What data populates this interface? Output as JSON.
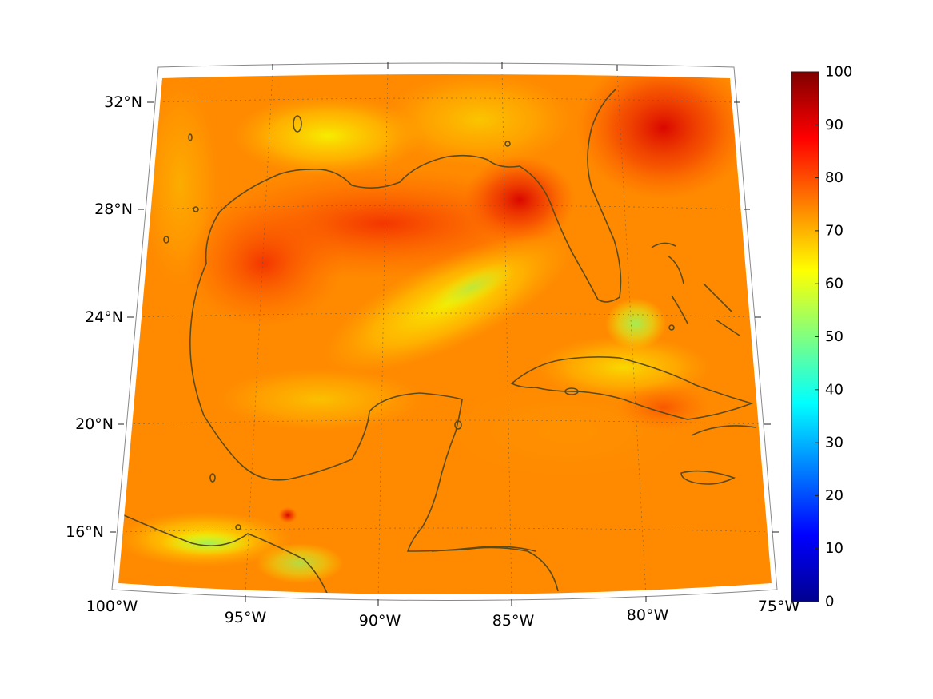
{
  "map": {
    "lon_labels": [
      "100°W",
      "95°W",
      "90°W",
      "85°W",
      "80°W",
      "75°W"
    ],
    "lat_labels": [
      "32°N",
      "28°N",
      "24°N",
      "20°N",
      "16°N"
    ]
  },
  "colorbar": {
    "ticks": [
      "100",
      "90",
      "80",
      "70",
      "60",
      "50",
      "40",
      "30",
      "20",
      "10",
      "0"
    ],
    "range": [
      0,
      100
    ],
    "colormap": "jet"
  },
  "colors": {
    "coastline": "#5a4a1a",
    "gridline": "#555555",
    "field_dominant": "#ff8800",
    "field_high": "#e01000",
    "field_low": "#f4f000"
  }
}
